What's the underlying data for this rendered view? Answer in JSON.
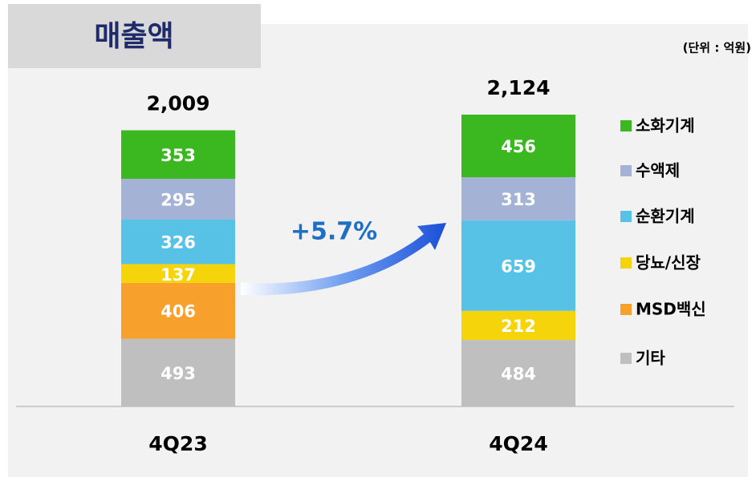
{
  "chart_data": {
    "type": "stacked_bar",
    "title": "매출액",
    "unit_label": "(단위 : 억원)",
    "annotation": "+5.7%",
    "categories": [
      "4Q23",
      "4Q24"
    ],
    "series": [
      {
        "name": "기타",
        "color": "#bfbfbf",
        "values": [
          493,
          484
        ]
      },
      {
        "name": "MSD백신",
        "color": "#f7a02c",
        "values": [
          406,
          null
        ]
      },
      {
        "name": "당뇨/신장",
        "color": "#f6d40c",
        "values": [
          137,
          212
        ]
      },
      {
        "name": "순환기계",
        "color": "#58c2e6",
        "values": [
          326,
          659
        ]
      },
      {
        "name": "수액제",
        "color": "#a4b2d5",
        "values": [
          295,
          313
        ]
      },
      {
        "name": "소화기계",
        "color": "#3bb81f",
        "values": [
          353,
          456
        ]
      }
    ],
    "totals": [
      2009,
      2124
    ],
    "total_labels": [
      "2,009",
      "2,124"
    ]
  }
}
